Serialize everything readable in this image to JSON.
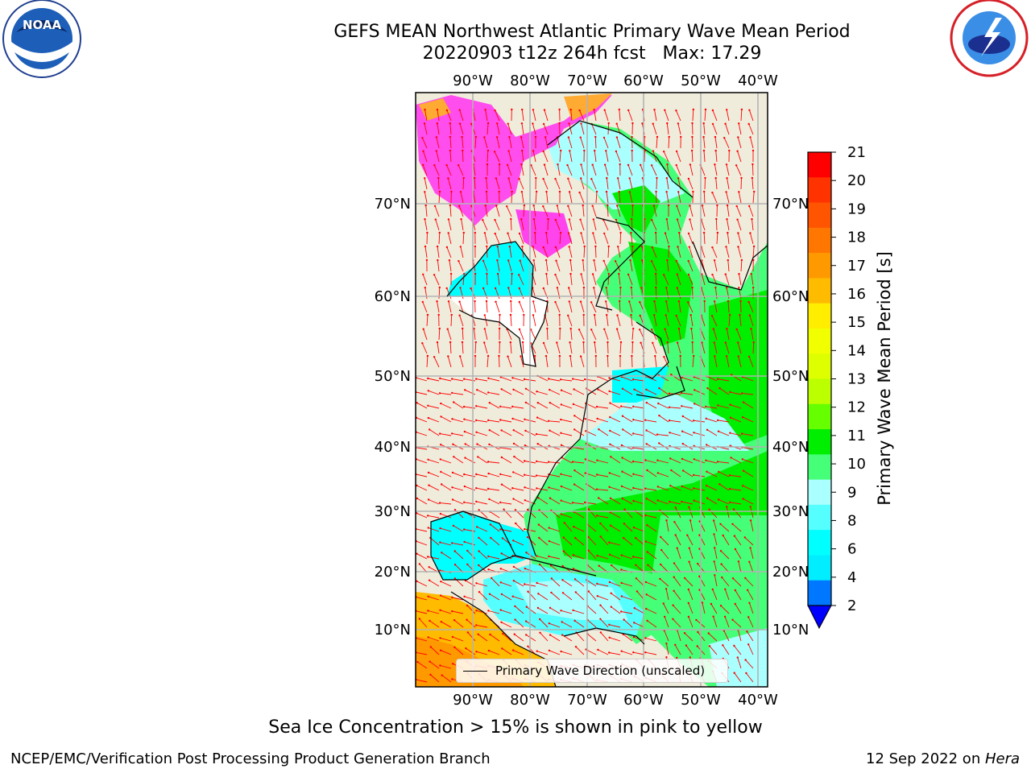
{
  "title": {
    "line1": "GEFS MEAN Northwest Atlantic Primary Wave Mean Period",
    "line2": "20220903 t12z 264h fcst   Max: 17.29"
  },
  "logos": {
    "left": "noaa-logo",
    "right": "national-weather-service-logo"
  },
  "map": {
    "lon_labels": [
      "90°W",
      "80°W",
      "70°W",
      "60°W",
      "50°W",
      "40°W"
    ],
    "lat_labels": [
      "70°N",
      "60°N",
      "50°N",
      "40°N",
      "30°N",
      "20°N",
      "10°N"
    ],
    "legend": "Primary Wave Direction (unscaled)",
    "land_color": "#efecdc",
    "arrow_color": "#ff0000"
  },
  "colorbar": {
    "label": "Primary Wave Mean Period [s]",
    "ticks": [
      "21",
      "20",
      "19",
      "18",
      "17",
      "16",
      "15",
      "14",
      "13",
      "12",
      "11",
      "10",
      "9",
      "8",
      "6",
      "4",
      "2"
    ],
    "colors": [
      "#ff0000",
      "#ff3300",
      "#ff5500",
      "#ff7700",
      "#ff9900",
      "#ffbb00",
      "#ffee00",
      "#f2ff00",
      "#ddff00",
      "#bbff00",
      "#66ff00",
      "#00ee00",
      "#44ff77",
      "#aaffff",
      "#55ffff",
      "#00ffff",
      "#00eeff",
      "#0077ff"
    ],
    "under_color": "#0000ff"
  },
  "note": "Sea Ice Concentration > 15% is shown in pink to yellow",
  "footer": {
    "left": "NCEP/EMC/Verification Post Processing Product Generation Branch",
    "right_date": "12 Sep 2022 on ",
    "right_host": "Hera"
  }
}
